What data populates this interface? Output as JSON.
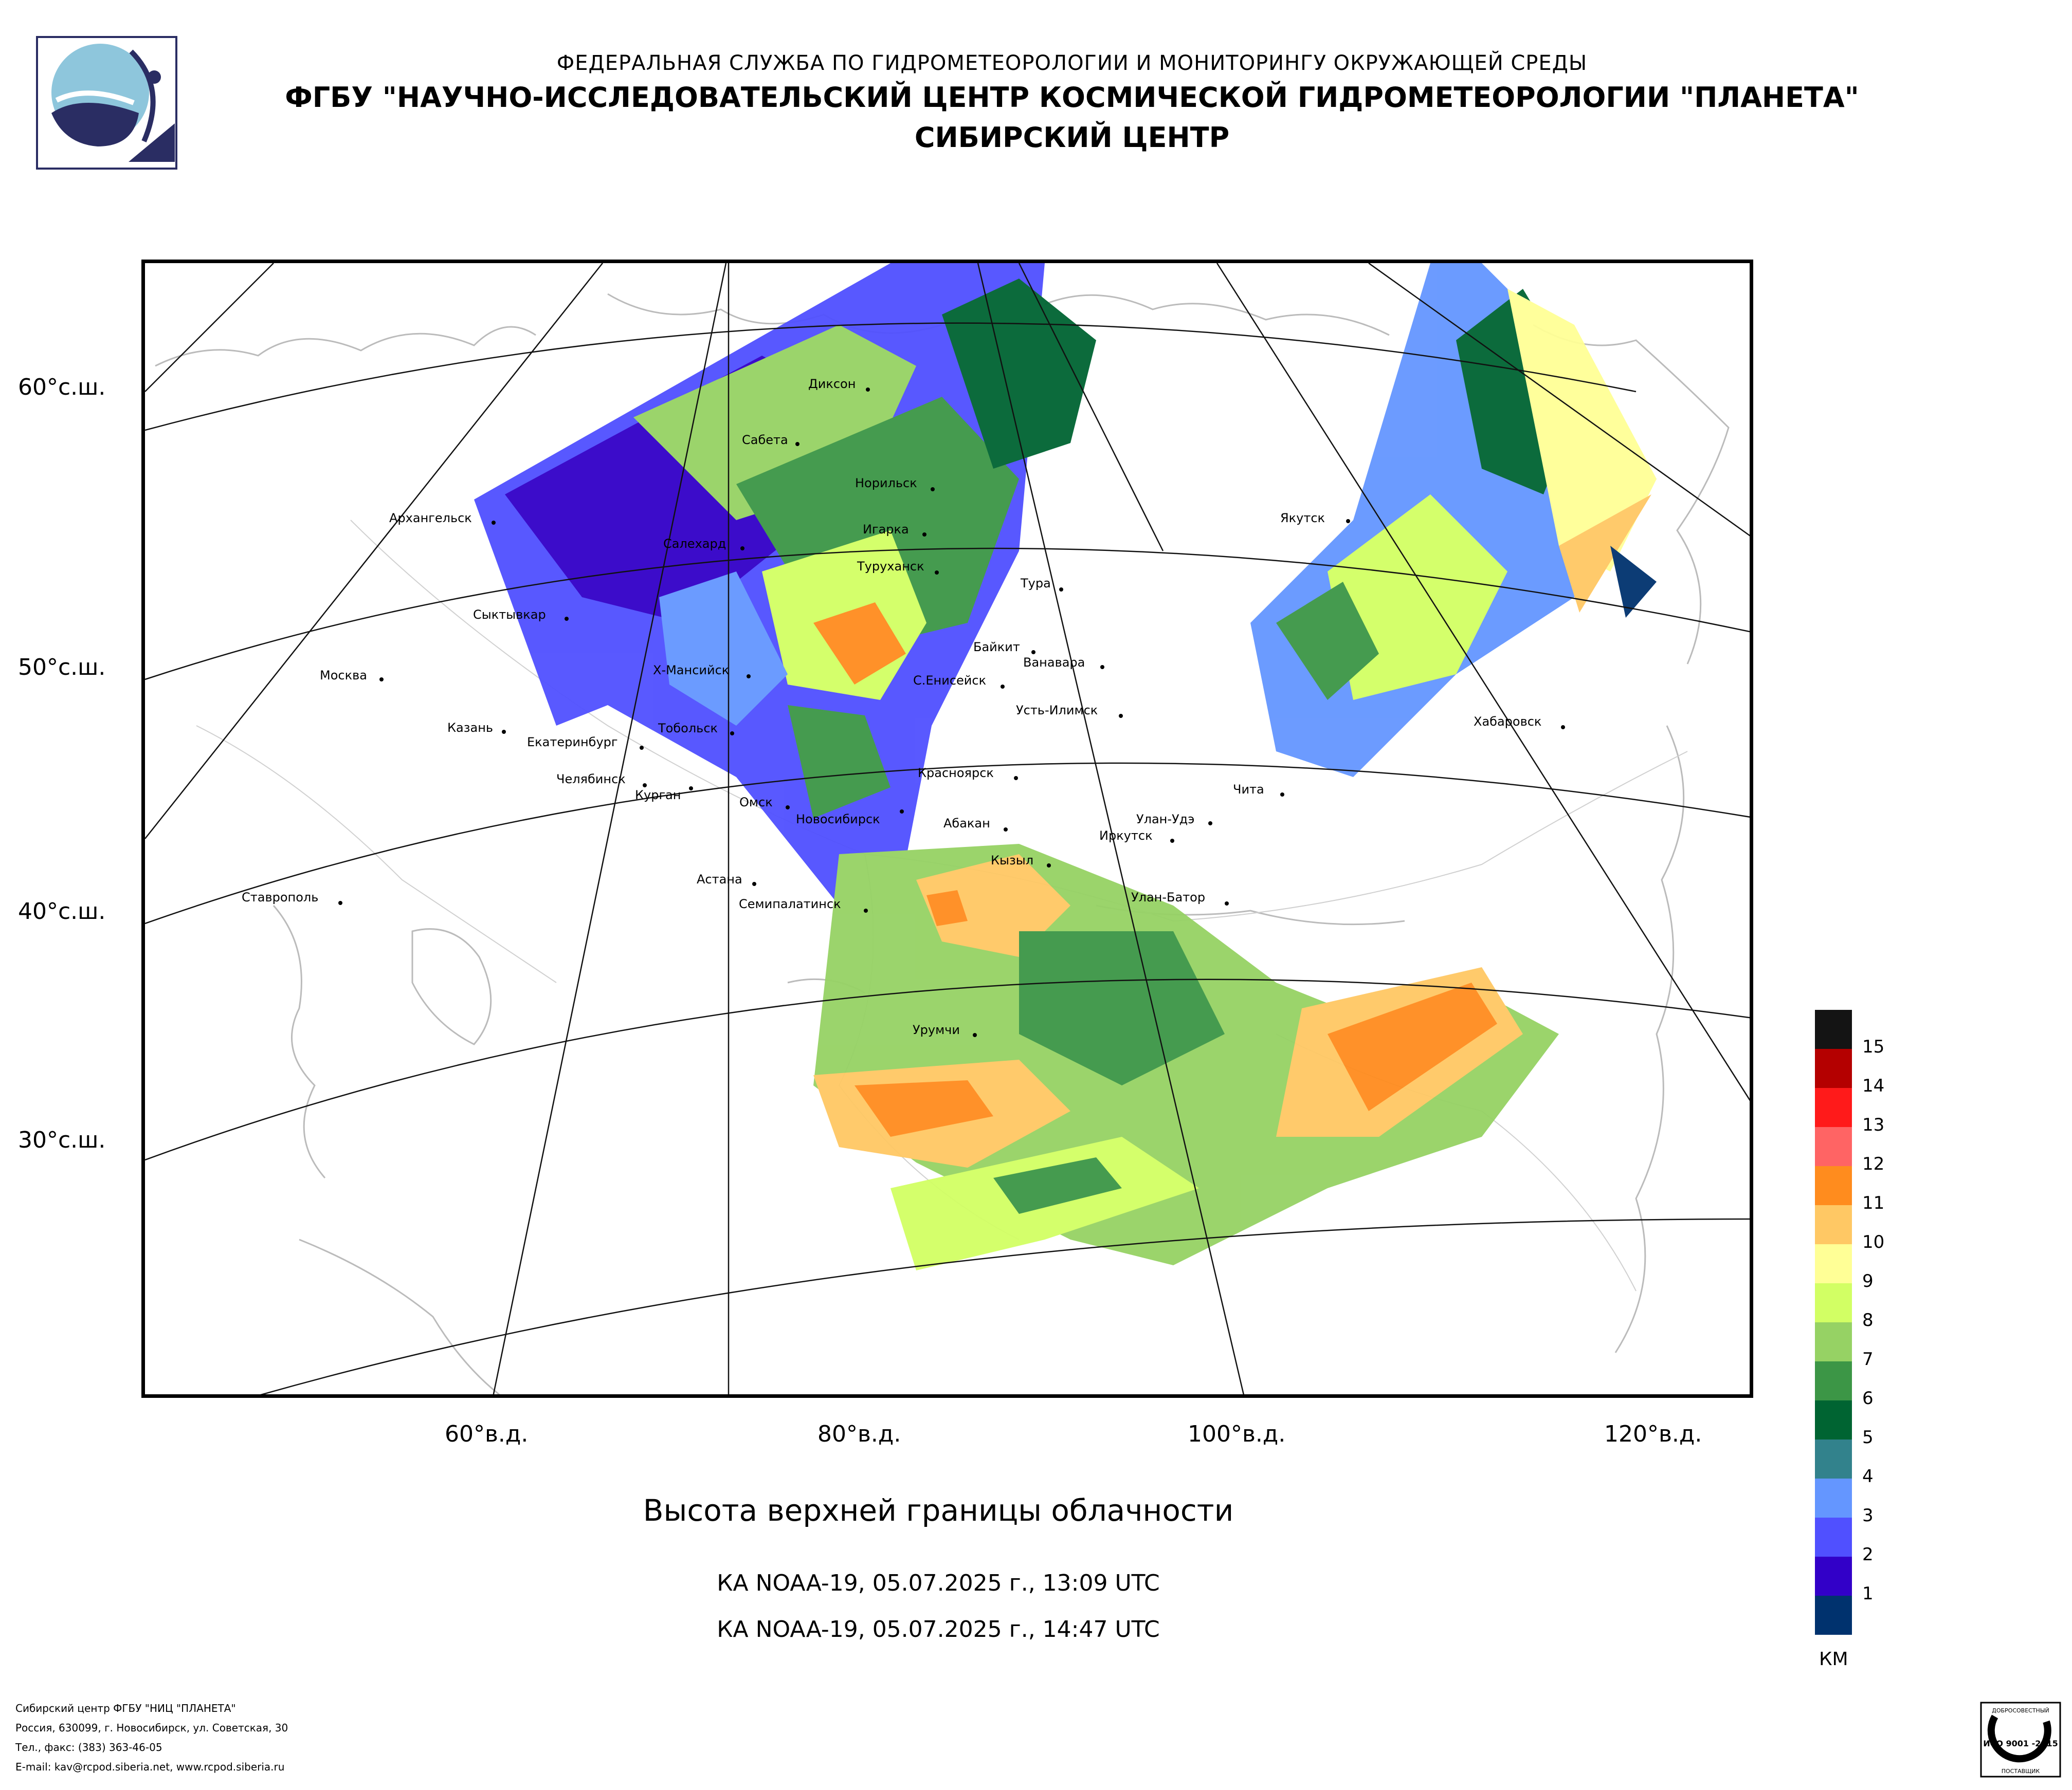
{
  "header": {
    "line1": "ФЕДЕРАЛЬНАЯ СЛУЖБА ПО ГИДРОМЕТЕОРОЛОГИИ И МОНИТОРИНГУ ОКРУЖАЮЩЕЙ СРЕДЫ",
    "line2": "ФГБУ \"НАУЧНО-ИССЛЕДОВАТЕЛЬСКИЙ ЦЕНТР КОСМИЧЕСКОЙ ГИДРОМЕТЕОРОЛОГИИ \"ПЛАНЕТА\"",
    "line3": "СИБИРСКИЙ ЦЕНТР"
  },
  "map": {
    "lat_labels": [
      "60°с.ш.",
      "50°с.ш.",
      "40°с.ш.",
      "30°с.ш."
    ],
    "lon_labels": [
      "60°в.д.",
      "80°в.д.",
      "100°в.д.",
      "120°в.д."
    ],
    "cities": [
      "Диксон",
      "Сабета",
      "Норильск",
      "Архангельск",
      "Игарка",
      "Салехард",
      "Туруханск",
      "Тура",
      "Якутск",
      "Сыктывкар",
      "Байкит",
      "Ванавара",
      "С.Енисейск",
      "Москва",
      "Х-Мансийск",
      "Усть-Илимск",
      "Казань",
      "Тобольск",
      "Хабаровск",
      "Екатеринбург",
      "Красноярск",
      "Челябинск",
      "Курган",
      "Чита",
      "Омск",
      "Новосибирск",
      "Абакан",
      "Улан-Удэ",
      "Иркутск",
      "Кызыл",
      "Ставрополь",
      "Астана",
      "Семипалатинск",
      "Улан-Батор",
      "Урумчи"
    ]
  },
  "title": "Высота верхней границы облачности",
  "passes": [
    "КА NOAA-19, 05.07.2025 г., 13:09 UTC",
    "КА NOAA-19, 05.07.2025 г., 14:47 UTC"
  ],
  "legend": {
    "levels": [
      {
        "label": "15",
        "color": "#141414"
      },
      {
        "label": "14",
        "color": "#b40000"
      },
      {
        "label": "13",
        "color": "#ff1a1a"
      },
      {
        "label": "12",
        "color": "#ff6464"
      },
      {
        "label": "11",
        "color": "#ff8c1e"
      },
      {
        "label": "10",
        "color": "#ffc864"
      },
      {
        "label": "9",
        "color": "#ffff96"
      },
      {
        "label": "8",
        "color": "#d2ff64"
      },
      {
        "label": "7",
        "color": "#96d264"
      },
      {
        "label": "6",
        "color": "#3c9646"
      },
      {
        "label": "5",
        "color": "#006432"
      },
      {
        "label": "4",
        "color": "#32828c"
      },
      {
        "label": "3",
        "color": "#6496ff"
      },
      {
        "label": "2",
        "color": "#5050ff"
      },
      {
        "label": "1",
        "color": "#3200c8"
      },
      {
        "label": "",
        "color": "#00326e"
      }
    ],
    "unit": "КМ"
  },
  "footer": {
    "line1": "Сибирский центр ФГБУ \"НИЦ \"ПЛАНЕТА\"",
    "line2": "Россия, 630099, г. Новосибирск, ул. Советская, 30",
    "line3": "Тел., факс: (383) 363-46-05",
    "line4": "E-mail: kav@rcpod.siberia.net, www.rcpod.siberia.ru"
  },
  "cert": {
    "top": "ДОБРОСОВЕСТНЫЙ",
    "middle": "ИСО 9001 -2015",
    "bottom": "ПОСТАВЩИК"
  }
}
